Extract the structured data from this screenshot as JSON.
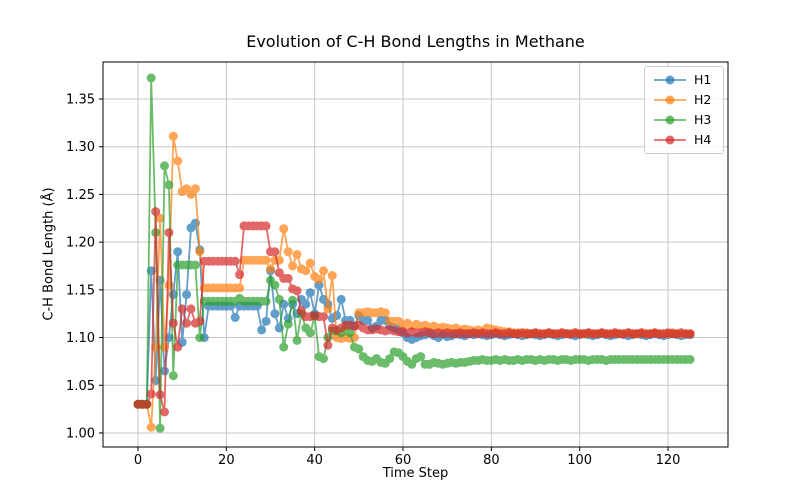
{
  "figure": {
    "background": "#ffffff"
  },
  "chart_data": {
    "type": "line",
    "title": "Evolution of C-H Bond Lengths in Methane",
    "xlabel": "Time Step",
    "ylabel": "C-H Bond Length (Å)",
    "x_start": 0,
    "x_step": 1,
    "n_points": 126,
    "xlim": [
      -7.92,
      133.58
    ],
    "ylim": [
      0.9853,
      1.3888
    ],
    "xtick_labels": [
      "0",
      "20",
      "40",
      "60",
      "80",
      "100",
      "120"
    ],
    "ytick_labels": [
      "1.00",
      "1.05",
      "1.10",
      "1.15",
      "1.20",
      "1.25",
      "1.30",
      "1.35"
    ],
    "grid": true,
    "grid_color": "#c6c6c6",
    "spine_color": "#000000",
    "legend_position": "upper right",
    "marker": "o",
    "alpha": 0.7,
    "series": [
      {
        "name": "H1",
        "color": "#1f77b4",
        "values": [
          1.03,
          1.03,
          1.03,
          1.17,
          1.055,
          1.16,
          1.065,
          1.1,
          1.145,
          1.19,
          1.095,
          1.145,
          1.215,
          1.22,
          1.192,
          1.1,
          1.133,
          1.133,
          1.133,
          1.133,
          1.133,
          1.133,
          1.121,
          1.133,
          1.133,
          1.133,
          1.133,
          1.133,
          1.108,
          1.117,
          1.17,
          1.125,
          1.11,
          1.135,
          1.12,
          1.135,
          1.125,
          1.14,
          1.135,
          1.147,
          1.125,
          1.155,
          1.14,
          1.135,
          1.12,
          1.123,
          1.14,
          1.118,
          1.118,
          1.112,
          1.123,
          1.118,
          1.118,
          1.11,
          1.112,
          1.118,
          1.118,
          1.112,
          1.11,
          1.108,
          1.105,
          1.1,
          1.098,
          1.1,
          1.102,
          1.103,
          1.105,
          1.102,
          1.1,
          1.103,
          1.101,
          1.102,
          1.104,
          1.103,
          1.102,
          1.104,
          1.103,
          1.104,
          1.103,
          1.102,
          1.103,
          1.104,
          1.103,
          1.102,
          1.103,
          1.104,
          1.103,
          1.102,
          1.103,
          1.104,
          1.103,
          1.102,
          1.103,
          1.104,
          1.103,
          1.102,
          1.103,
          1.104,
          1.103,
          1.102,
          1.103,
          1.104,
          1.103,
          1.102,
          1.103,
          1.104,
          1.103,
          1.102,
          1.103,
          1.104,
          1.103,
          1.102,
          1.103,
          1.104,
          1.103,
          1.102,
          1.103,
          1.104,
          1.103,
          1.102,
          1.103,
          1.104,
          1.103,
          1.102,
          1.103,
          1.103
        ]
      },
      {
        "name": "H2",
        "color": "#ff7f0e",
        "values": [
          1.03,
          1.03,
          1.03,
          1.006,
          1.09,
          1.225,
          1.09,
          1.155,
          1.311,
          1.285,
          1.253,
          1.256,
          1.25,
          1.256,
          1.19,
          1.152,
          1.152,
          1.152,
          1.152,
          1.152,
          1.152,
          1.152,
          1.152,
          1.152,
          1.181,
          1.181,
          1.181,
          1.181,
          1.181,
          1.181,
          1.172,
          1.181,
          1.181,
          1.214,
          1.19,
          1.175,
          1.187,
          1.172,
          1.17,
          1.178,
          1.164,
          1.161,
          1.17,
          1.13,
          1.165,
          1.1,
          1.099,
          1.1,
          1.099,
          1.1,
          1.126,
          1.126,
          1.127,
          1.126,
          1.126,
          1.127,
          1.126,
          1.117,
          1.117,
          1.117,
          1.113,
          1.115,
          1.112,
          1.114,
          1.112,
          1.113,
          1.111,
          1.112,
          1.11,
          1.111,
          1.11,
          1.109,
          1.11,
          1.108,
          1.109,
          1.108,
          1.107,
          1.108,
          1.107,
          1.11,
          1.109,
          1.108,
          1.107,
          1.106,
          1.106,
          1.105,
          1.105,
          1.104,
          1.105,
          1.104,
          1.105,
          1.104,
          1.104,
          1.105,
          1.104,
          1.104,
          1.105,
          1.104,
          1.104,
          1.105,
          1.104,
          1.104,
          1.105,
          1.104,
          1.104,
          1.105,
          1.104,
          1.104,
          1.105,
          1.104,
          1.104,
          1.105,
          1.104,
          1.104,
          1.105,
          1.104,
          1.104,
          1.105,
          1.104,
          1.104,
          1.104,
          1.105,
          1.104,
          1.104,
          1.104,
          1.104
        ]
      },
      {
        "name": "H3",
        "color": "#2ca02c",
        "values": [
          1.03,
          1.03,
          1.03,
          1.372,
          1.21,
          1.005,
          1.28,
          1.26,
          1.06,
          1.176,
          1.176,
          1.176,
          1.176,
          1.176,
          1.1,
          1.138,
          1.138,
          1.138,
          1.138,
          1.138,
          1.138,
          1.138,
          1.138,
          1.141,
          1.138,
          1.138,
          1.138,
          1.138,
          1.138,
          1.138,
          1.16,
          1.155,
          1.14,
          1.09,
          1.114,
          1.139,
          1.097,
          1.125,
          1.11,
          1.105,
          1.122,
          1.08,
          1.078,
          1.1,
          1.107,
          1.107,
          1.105,
          1.11,
          1.105,
          1.09,
          1.088,
          1.08,
          1.076,
          1.075,
          1.078,
          1.074,
          1.073,
          1.078,
          1.085,
          1.084,
          1.08,
          1.075,
          1.072,
          1.078,
          1.08,
          1.072,
          1.072,
          1.074,
          1.073,
          1.072,
          1.073,
          1.074,
          1.073,
          1.074,
          1.074,
          1.075,
          1.076,
          1.076,
          1.077,
          1.076,
          1.076,
          1.077,
          1.076,
          1.077,
          1.076,
          1.076,
          1.077,
          1.076,
          1.077,
          1.077,
          1.076,
          1.077,
          1.076,
          1.077,
          1.077,
          1.076,
          1.077,
          1.077,
          1.076,
          1.077,
          1.077,
          1.077,
          1.076,
          1.077,
          1.077,
          1.077,
          1.076,
          1.077,
          1.077,
          1.077,
          1.077,
          1.077,
          1.077,
          1.077,
          1.077,
          1.077,
          1.077,
          1.077,
          1.077,
          1.077,
          1.077,
          1.077,
          1.077,
          1.077,
          1.077,
          1.077
        ]
      },
      {
        "name": "H4",
        "color": "#d62728",
        "values": [
          1.03,
          1.03,
          1.03,
          1.041,
          1.232,
          1.04,
          1.022,
          1.21,
          1.115,
          1.09,
          1.13,
          1.115,
          1.13,
          1.115,
          1.117,
          1.18,
          1.18,
          1.18,
          1.18,
          1.18,
          1.18,
          1.18,
          1.18,
          1.166,
          1.217,
          1.217,
          1.217,
          1.217,
          1.217,
          1.217,
          1.19,
          1.19,
          1.168,
          1.162,
          1.162,
          1.151,
          1.149,
          1.128,
          1.122,
          1.122,
          1.123,
          1.122,
          1.122,
          1.092,
          1.11,
          1.108,
          1.11,
          1.113,
          1.113,
          1.112,
          1.113,
          1.11,
          1.108,
          1.108,
          1.109,
          1.108,
          1.107,
          1.108,
          1.107,
          1.106,
          1.106,
          1.105,
          1.106,
          1.105,
          1.105,
          1.106,
          1.105,
          1.104,
          1.105,
          1.104,
          1.105,
          1.104,
          1.104,
          1.105,
          1.104,
          1.104,
          1.105,
          1.104,
          1.105,
          1.104,
          1.104,
          1.105,
          1.104,
          1.104,
          1.105,
          1.104,
          1.104,
          1.105,
          1.104,
          1.104,
          1.105,
          1.104,
          1.104,
          1.105,
          1.104,
          1.104,
          1.105,
          1.104,
          1.104,
          1.105,
          1.104,
          1.104,
          1.105,
          1.104,
          1.104,
          1.105,
          1.104,
          1.104,
          1.105,
          1.104,
          1.104,
          1.105,
          1.104,
          1.104,
          1.105,
          1.104,
          1.104,
          1.105,
          1.104,
          1.104,
          1.105,
          1.104,
          1.104,
          1.105,
          1.104,
          1.104
        ]
      }
    ]
  }
}
